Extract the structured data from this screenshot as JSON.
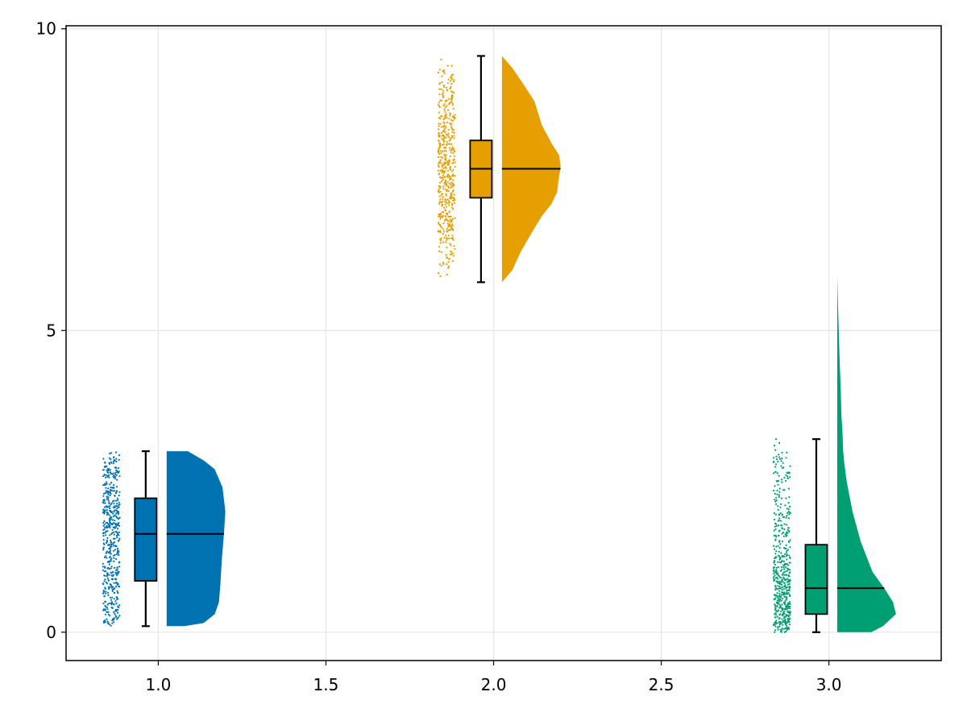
{
  "chart_data": {
    "type": "raincloud",
    "title": "",
    "xlabel": "",
    "ylabel": "",
    "xlim": [
      0.725,
      3.335
    ],
    "ylim": [
      -0.47,
      10.05
    ],
    "xticks": [
      1.0,
      1.5,
      2.0,
      2.5,
      3.0
    ],
    "yticks": [
      0,
      5,
      10
    ],
    "xtick_labels": [
      "1.0",
      "1.5",
      "2.0",
      "2.5",
      "3.0"
    ],
    "ytick_labels": [
      "0",
      "5",
      "10"
    ],
    "grid": true,
    "legend": "none",
    "series": [
      {
        "category": 1,
        "color": "#0072b2",
        "min": 0.1,
        "q1": 0.85,
        "median": 1.63,
        "q3": 2.22,
        "max": 3.0,
        "density": [
          [
            0.1,
            0.25
          ],
          [
            0.15,
            0.52
          ],
          [
            0.3,
            0.68
          ],
          [
            0.5,
            0.74
          ],
          [
            0.8,
            0.76
          ],
          [
            1.2,
            0.78
          ],
          [
            1.63,
            0.81
          ],
          [
            2.0,
            0.83
          ],
          [
            2.4,
            0.79
          ],
          [
            2.7,
            0.68
          ],
          [
            2.85,
            0.52
          ],
          [
            3.0,
            0.3
          ]
        ]
      },
      {
        "category": 2,
        "color": "#e69f00",
        "min": 5.8,
        "q1": 7.2,
        "median": 7.68,
        "q3": 8.15,
        "max": 9.55,
        "density": [
          [
            5.8,
            0.0
          ],
          [
            6.0,
            0.15
          ],
          [
            6.3,
            0.27
          ],
          [
            6.6,
            0.42
          ],
          [
            6.9,
            0.58
          ],
          [
            7.1,
            0.72
          ],
          [
            7.3,
            0.8
          ],
          [
            7.5,
            0.82
          ],
          [
            7.7,
            0.85
          ],
          [
            7.9,
            0.83
          ],
          [
            8.1,
            0.72
          ],
          [
            8.4,
            0.58
          ],
          [
            8.8,
            0.47
          ],
          [
            9.1,
            0.3
          ],
          [
            9.35,
            0.15
          ],
          [
            9.55,
            0.0
          ]
        ]
      },
      {
        "category": 3,
        "color": "#009e73",
        "min": 0.0,
        "q1": 0.3,
        "median": 0.73,
        "q3": 1.45,
        "max": 3.2,
        "density": [
          [
            0.0,
            0.58
          ],
          [
            0.1,
            0.78
          ],
          [
            0.3,
            1.0
          ],
          [
            0.5,
            0.95
          ],
          [
            0.73,
            0.8
          ],
          [
            1.0,
            0.6
          ],
          [
            1.5,
            0.4
          ],
          [
            2.0,
            0.26
          ],
          [
            2.5,
            0.16
          ],
          [
            2.8,
            0.12
          ],
          [
            3.0,
            0.1
          ],
          [
            3.3,
            0.09
          ],
          [
            3.6,
            0.07
          ],
          [
            4.0,
            0.06
          ],
          [
            4.5,
            0.04
          ],
          [
            5.0,
            0.025
          ],
          [
            5.5,
            0.01
          ],
          [
            5.9,
            0.0
          ]
        ]
      }
    ]
  }
}
